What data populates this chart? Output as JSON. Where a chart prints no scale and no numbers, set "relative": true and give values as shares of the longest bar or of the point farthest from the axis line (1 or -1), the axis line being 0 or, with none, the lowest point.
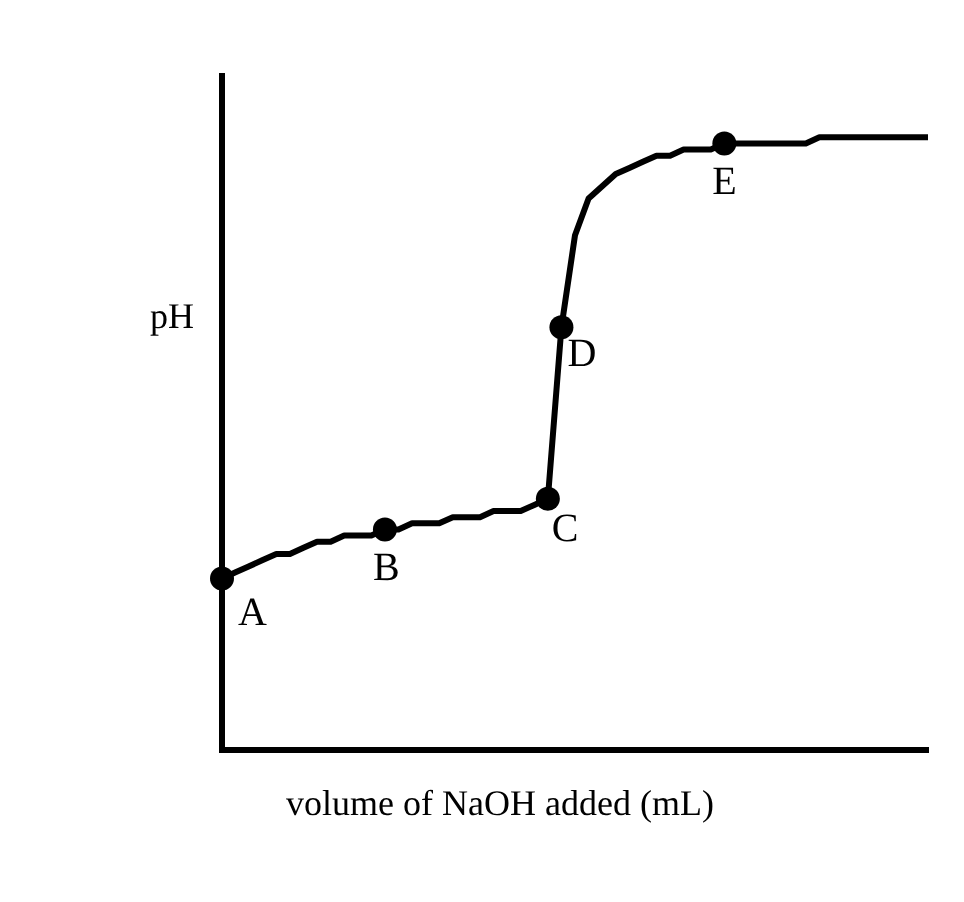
{
  "chart_data": {
    "type": "line",
    "relative": true,
    "xlabel": "volume of NaOH added (mL)",
    "ylabel": "pH",
    "grid": false,
    "legend": false,
    "categories": [
      null,
      null,
      null,
      null,
      null,
      null,
      null,
      null,
      null,
      null,
      null,
      null,
      null,
      null,
      null,
      null,
      null,
      null,
      null,
      null,
      null,
      null,
      null,
      null,
      null,
      null,
      null,
      null,
      null,
      null,
      null,
      null,
      null,
      null,
      null,
      null,
      null,
      null,
      null,
      null,
      null,
      null,
      null,
      null,
      null,
      null,
      null,
      null,
      null,
      null,
      null,
      null,
      null
    ],
    "series": [
      {
        "color": "#000000",
        "line_style": "solid",
        "values": [
          0.28,
          0.29,
          0.3,
          0.31,
          0.32,
          0.32,
          0.33,
          0.34,
          0.34,
          0.35,
          0.35,
          0.35,
          0.36,
          0.36,
          0.37,
          0.37,
          0.37,
          0.38,
          0.38,
          0.38,
          0.39,
          0.39,
          0.39,
          0.4,
          0.41,
          0.69,
          0.84,
          0.9,
          0.92,
          0.94,
          0.95,
          0.96,
          0.97,
          0.97,
          0.98,
          0.98,
          0.98,
          0.99,
          0.99,
          0.99,
          0.99,
          0.99,
          0.99,
          0.99,
          1.0,
          1.0,
          1.0,
          1.0,
          1.0,
          1.0,
          1.0,
          1.0,
          1.0
        ]
      }
    ],
    "annotations": [
      {
        "text": "A",
        "y": 0.28
      },
      {
        "text": "B",
        "y": 0.36
      },
      {
        "text": "C",
        "y": 0.41
      },
      {
        "text": "D",
        "y": 0.69
      },
      {
        "text": "E",
        "y": 0.99
      }
    ]
  }
}
